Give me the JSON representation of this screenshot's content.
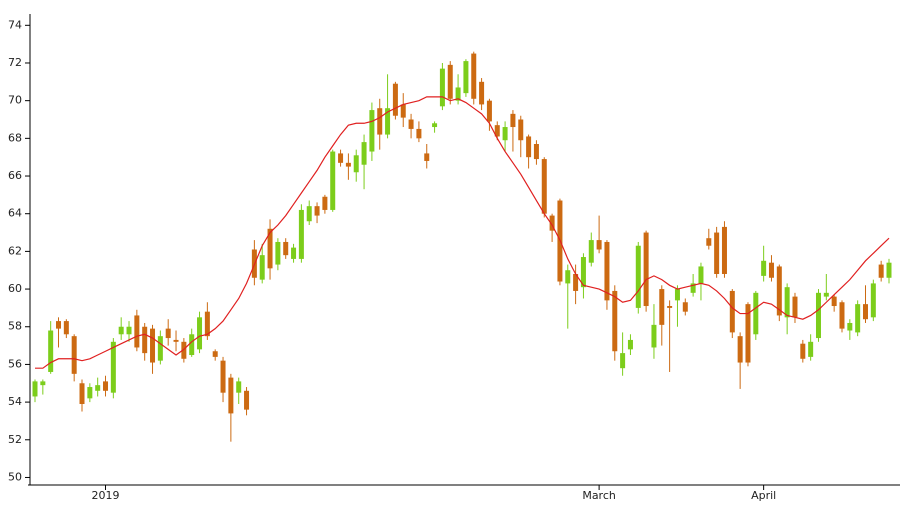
{
  "chart_data": {
    "type": "candlestick",
    "categories": [
      null,
      null,
      null,
      null,
      null,
      null,
      null,
      null,
      null,
      "2019",
      null,
      null,
      null,
      null,
      null,
      null,
      null,
      null,
      null,
      null,
      null,
      null,
      null,
      null,
      null,
      null,
      null,
      null,
      null,
      null,
      null,
      null,
      null,
      null,
      null,
      null,
      null,
      null,
      null,
      null,
      null,
      null,
      null,
      null,
      null,
      null,
      null,
      null,
      null,
      null,
      null,
      null,
      null,
      null,
      null,
      null,
      null,
      null,
      null,
      null,
      null,
      null,
      null,
      null,
      null,
      null,
      null,
      null,
      null,
      null,
      null,
      null,
      "March",
      null,
      null,
      null,
      null,
      null,
      null,
      null,
      null,
      null,
      null,
      null,
      null,
      null,
      null,
      null,
      null,
      null,
      null,
      null,
      null,
      "April",
      null,
      null,
      null,
      null,
      null,
      null,
      null,
      null,
      null,
      null,
      null,
      null,
      null,
      null,
      null,
      null
    ],
    "open": [
      54.3,
      54.9,
      55.6,
      58.3,
      58.3,
      57.5,
      55.0,
      54.2,
      54.6,
      55.1,
      54.5,
      57.6,
      57.6,
      58.6,
      58.0,
      57.9,
      56.2,
      57.9,
      57.3,
      57.2,
      56.5,
      56.8,
      58.8,
      56.7,
      56.2,
      55.3,
      54.5,
      54.6,
      62.1,
      60.5,
      63.2,
      61.3,
      62.5,
      61.6,
      61.6,
      63.6,
      64.4,
      64.9,
      64.2,
      67.2,
      66.7,
      66.2,
      66.6,
      67.3,
      69.6,
      68.2,
      70.9,
      69.8,
      69.0,
      68.5,
      67.2,
      68.6,
      69.7,
      71.9,
      70.0,
      70.4,
      72.5,
      71.0,
      70.0,
      68.7,
      67.9,
      69.3,
      69.0,
      68.1,
      67.7,
      66.9,
      63.9,
      64.7,
      60.3,
      60.8,
      60.1,
      61.4,
      62.6,
      62.5,
      59.9,
      55.8,
      56.8,
      59.0,
      63.0,
      56.9,
      60.0,
      59.1,
      59.4,
      59.3,
      59.8,
      60.3,
      62.7,
      63.0,
      63.3,
      59.9,
      57.5,
      59.2,
      57.6,
      60.7,
      61.4,
      61.2,
      58.5,
      59.6,
      57.1,
      56.4,
      57.4,
      59.6,
      59.6,
      59.3,
      57.8,
      57.7,
      59.2,
      58.5,
      61.3,
      60.6
    ],
    "high": [
      55.2,
      55.2,
      58.3,
      58.5,
      58.4,
      57.6,
      55.2,
      55.0,
      55.3,
      55.4,
      57.4,
      58.5,
      58.3,
      58.9,
      58.2,
      58.1,
      57.8,
      58.4,
      57.8,
      57.4,
      57.9,
      58.8,
      59.3,
      56.8,
      56.4,
      55.5,
      55.3,
      54.8,
      62.6,
      62.4,
      63.7,
      62.7,
      62.7,
      62.4,
      64.5,
      64.7,
      64.6,
      65.0,
      67.4,
      67.4,
      67.2,
      67.4,
      68.2,
      69.9,
      70.1,
      71.4,
      71.0,
      70.4,
      69.3,
      68.9,
      67.7,
      68.9,
      72.0,
      72.1,
      71.4,
      72.2,
      72.6,
      71.2,
      70.1,
      68.9,
      68.9,
      69.5,
      69.2,
      68.2,
      67.9,
      67.0,
      64.0,
      64.8,
      61.3,
      61.3,
      61.9,
      63.0,
      63.9,
      62.6,
      60.2,
      57.7,
      57.6,
      62.5,
      63.1,
      59.2,
      60.2,
      59.4,
      60.2,
      59.5,
      60.8,
      61.4,
      63.2,
      63.3,
      63.6,
      60.0,
      57.7,
      59.3,
      59.9,
      62.3,
      61.8,
      61.3,
      60.3,
      59.8,
      57.3,
      57.6,
      60.0,
      60.8,
      59.7,
      59.4,
      58.4,
      59.4,
      60.2,
      60.5,
      61.5,
      61.6
    ],
    "low": [
      54.0,
      54.4,
      55.5,
      56.9,
      57.4,
      55.1,
      53.5,
      54.0,
      54.3,
      54.3,
      54.2,
      57.3,
      57.2,
      56.7,
      56.2,
      55.5,
      56.0,
      57.0,
      56.7,
      56.1,
      56.4,
      56.6,
      57.3,
      56.2,
      54.0,
      51.9,
      53.9,
      53.3,
      60.2,
      60.3,
      60.5,
      61.0,
      61.6,
      61.4,
      61.4,
      63.4,
      63.5,
      64.0,
      64.1,
      66.5,
      65.8,
      65.7,
      65.3,
      66.8,
      67.4,
      68.0,
      69.0,
      68.6,
      68.0,
      67.8,
      66.4,
      68.3,
      69.5,
      69.8,
      69.8,
      70.2,
      69.8,
      69.5,
      68.4,
      67.9,
      67.3,
      67.3,
      67.0,
      66.4,
      66.6,
      63.8,
      62.5,
      60.2,
      57.9,
      59.2,
      59.5,
      61.2,
      61.9,
      58.9,
      56.2,
      55.4,
      56.5,
      58.7,
      58.8,
      56.3,
      57.0,
      55.6,
      58.0,
      58.6,
      59.6,
      59.4,
      62.1,
      60.6,
      60.6,
      57.4,
      54.7,
      55.9,
      57.3,
      60.4,
      60.4,
      58.3,
      57.6,
      58.2,
      56.1,
      56.2,
      57.2,
      59.4,
      58.8,
      57.7,
      57.3,
      57.5,
      58.2,
      58.3,
      60.4,
      60.3
    ],
    "close": [
      55.1,
      55.1,
      57.8,
      57.9,
      57.6,
      55.5,
      53.9,
      54.8,
      54.9,
      54.6,
      57.2,
      58.0,
      58.0,
      56.9,
      56.6,
      56.1,
      57.5,
      57.4,
      57.2,
      56.3,
      57.6,
      58.5,
      57.5,
      56.4,
      54.5,
      53.4,
      55.1,
      53.6,
      60.6,
      61.8,
      61.1,
      62.5,
      61.8,
      62.2,
      64.2,
      64.4,
      63.9,
      64.2,
      67.3,
      66.7,
      66.5,
      67.1,
      67.8,
      69.5,
      68.2,
      69.6,
      69.2,
      69.1,
      68.5,
      68.0,
      66.8,
      68.8,
      71.7,
      70.1,
      70.7,
      72.1,
      70.1,
      69.8,
      68.9,
      68.1,
      68.6,
      68.6,
      67.9,
      67.0,
      66.9,
      64.0,
      63.1,
      60.4,
      61.0,
      59.9,
      61.7,
      62.6,
      62.1,
      59.4,
      56.7,
      56.6,
      57.3,
      62.3,
      59.1,
      58.1,
      58.1,
      59.0,
      60.0,
      58.8,
      60.3,
      61.2,
      62.3,
      60.8,
      60.8,
      57.7,
      56.1,
      56.1,
      59.8,
      61.5,
      60.6,
      58.6,
      60.1,
      58.5,
      56.3,
      57.2,
      59.8,
      59.8,
      59.1,
      57.9,
      58.2,
      59.2,
      58.4,
      60.3,
      60.6,
      61.4
    ],
    "up_color": "#7ccd1b",
    "down_color": "#cc6a12",
    "moving_average": {
      "color": "#e02020",
      "values": [
        55.8,
        55.8,
        56.1,
        56.3,
        56.3,
        56.3,
        56.2,
        56.3,
        56.5,
        56.7,
        56.9,
        57.1,
        57.3,
        57.5,
        57.6,
        57.4,
        57.1,
        56.8,
        56.5,
        56.8,
        57.2,
        57.5,
        57.6,
        57.9,
        58.3,
        58.9,
        59.5,
        60.3,
        61.3,
        62.3,
        63.0,
        63.4,
        63.9,
        64.5,
        65.1,
        65.7,
        66.3,
        67.0,
        67.6,
        68.2,
        68.7,
        68.8,
        68.8,
        68.9,
        69.1,
        69.4,
        69.6,
        69.8,
        69.9,
        70.0,
        70.2,
        70.2,
        70.2,
        70.0,
        70.1,
        69.9,
        69.6,
        69.3,
        68.8,
        68.0,
        67.3,
        66.7,
        66.1,
        65.4,
        64.7,
        64.0,
        63.4,
        62.6,
        61.6,
        60.8,
        60.2,
        60.1,
        60.0,
        59.8,
        59.6,
        59.3,
        59.4,
        59.9,
        60.5,
        60.7,
        60.5,
        60.2,
        60.0,
        60.1,
        60.2,
        60.3,
        60.2,
        59.9,
        59.5,
        59.0,
        58.7,
        58.7,
        59.0,
        59.3,
        59.2,
        58.9,
        58.6,
        58.5,
        58.4,
        58.6,
        58.9,
        59.3,
        59.7,
        60.1,
        60.5,
        61.0,
        61.5,
        61.9,
        62.3,
        62.7
      ]
    },
    "ylim": [
      49.6,
      74.6
    ],
    "yticks": [
      50,
      52,
      54,
      56,
      58,
      60,
      62,
      64,
      66,
      68,
      70,
      72,
      74
    ]
  }
}
